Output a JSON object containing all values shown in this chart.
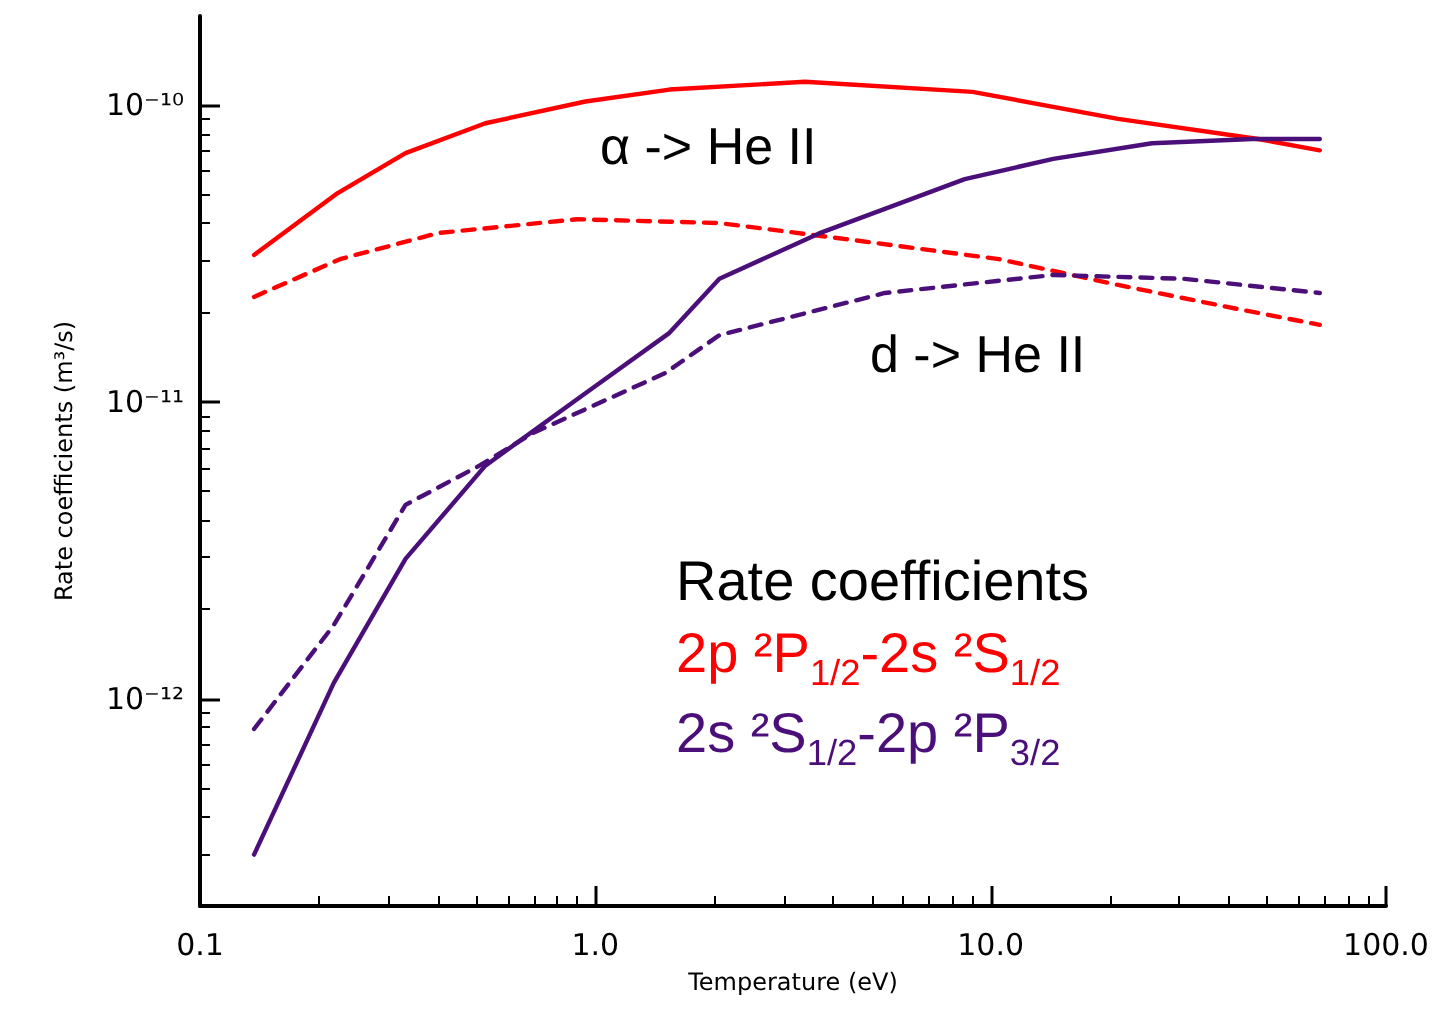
{
  "chart_data": {
    "type": "line",
    "xlabel": "Temperature (eV)",
    "ylabel": "Rate coefficients (m³/s)",
    "log": "xy",
    "xlim": [
      0.1,
      100
    ],
    "ylim": [
      2e-13,
      2e-10
    ],
    "xticks": [
      0.1,
      {
        "value": 1,
        "label": "1.0"
      },
      {
        "value": 10,
        "label": "10.0"
      },
      {
        "value": 100,
        "label": "100.0"
      }
    ],
    "yticks": [
      {
        "value": 1e-12,
        "label": "10⁻¹²"
      },
      {
        "value": 1e-11,
        "label": "10⁻¹¹"
      },
      {
        "value": 1e-10,
        "label": "10⁻¹⁰"
      }
    ],
    "grid": false,
    "marker": "none",
    "annotations": [
      "α -> He II",
      "d -> He II",
      "Rate coefficients",
      "2p ²P$_{1/2}$-2s ²S$_{1/2}$",
      "2s ²S$_{1/2}$-2p ²P$_{3/2}$"
    ],
    "series": [
      {
        "color": "#ff0000",
        "line_style": "solid",
        "x": [
          0.137,
          0.223,
          0.331,
          0.527,
          0.944,
          1.54,
          3.39,
          9.0,
          21,
          47.5,
          68
        ],
        "values": [
          3.13e-11,
          5.06e-11,
          6.9e-11,
          8.7e-11,
          1.03e-10,
          1.13e-10,
          1.2e-10,
          1.11e-10,
          9e-11,
          7.7e-11,
          7.05e-11
        ]
      },
      {
        "color": "#ff0000",
        "line_style": "dashed",
        "x": [
          0.137,
          0.226,
          0.4,
          0.9,
          2.06,
          4.3,
          10.5,
          21,
          42,
          68
        ],
        "values": [
          2.26e-11,
          3.03e-11,
          3.71e-11,
          4.13e-11,
          4.01e-11,
          3.54e-11,
          3.03e-11,
          2.48e-11,
          2.06e-11,
          1.82e-11
        ]
      },
      {
        "color": "#4b0f7a",
        "line_style": "solid",
        "x": [
          0.137,
          0.218,
          0.331,
          0.527,
          0.944,
          1.54,
          2.06,
          3.68,
          8.6,
          14.4,
          25.6,
          45.9,
          68
        ],
        "values": [
          2.98e-13,
          1.13e-12,
          2.96e-12,
          6.1e-12,
          1.07e-11,
          1.71e-11,
          2.6e-11,
          3.7e-11,
          5.64e-11,
          6.6e-11,
          7.45e-11,
          7.7e-11,
          7.7e-11
        ]
      },
      {
        "color": "#4b0f7a",
        "line_style": "dashed",
        "x": [
          0.137,
          0.218,
          0.331,
          0.509,
          0.697,
          1.5,
          2.06,
          5.4,
          14.4,
          30.9,
          68
        ],
        "values": [
          7.9e-13,
          1.77e-12,
          4.5e-12,
          6.1e-12,
          7.87e-12,
          1.25e-11,
          1.68e-11,
          2.33e-11,
          2.68e-11,
          2.6e-11,
          2.33e-11
        ]
      }
    ]
  }
}
